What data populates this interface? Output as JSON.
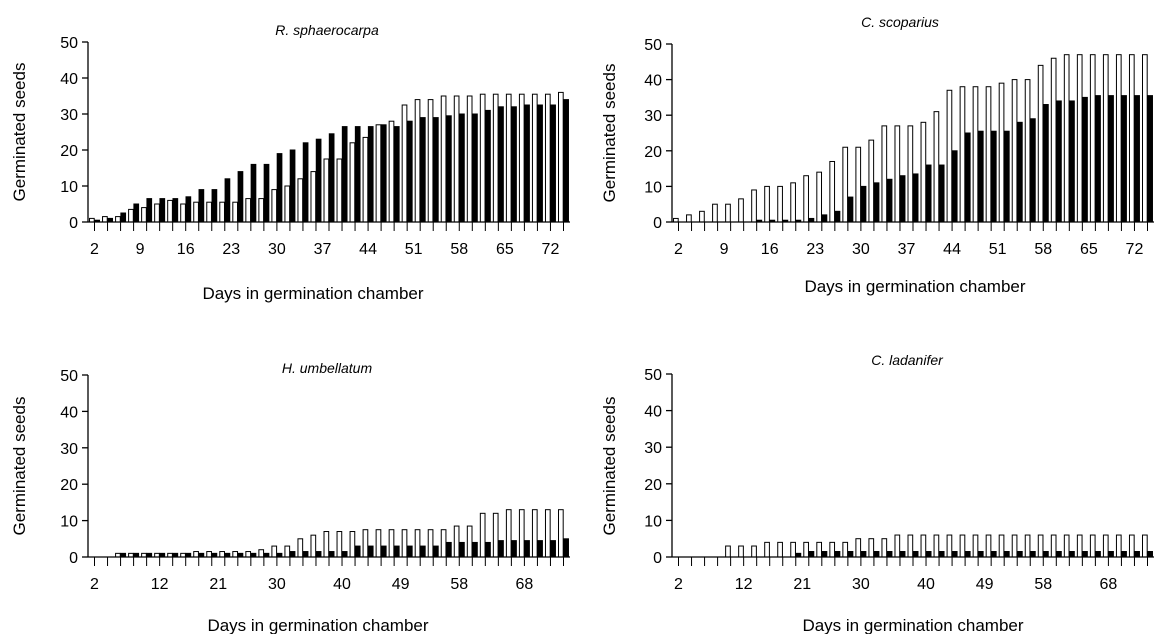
{
  "figure": {
    "legend": "none",
    "grid": false
  },
  "chart_data": [
    {
      "type": "bar",
      "title": "R. sphaerocarpa",
      "xlabel": "Days in germination chamber",
      "ylabel": "Germinated seeds",
      "ylim": [
        0,
        50
      ],
      "yticks": [
        0,
        10,
        20,
        30,
        40,
        50
      ],
      "xtick_labels": [
        "2",
        "9",
        "16",
        "23",
        "30",
        "37",
        "44",
        "51",
        "58",
        "65",
        "72"
      ],
      "xticks": [
        2,
        9,
        16,
        23,
        30,
        37,
        44,
        51,
        58,
        65,
        72
      ],
      "x": [
        2,
        4,
        6,
        8,
        10,
        12,
        14,
        16,
        18,
        20,
        22,
        24,
        26,
        28,
        30,
        32,
        34,
        36,
        38,
        40,
        42,
        44,
        46,
        48,
        50,
        52,
        54,
        56,
        58,
        60,
        62,
        64,
        66,
        68,
        70,
        72,
        74
      ],
      "series": [
        {
          "color": "#ffffff",
          "values": [
            1,
            1.5,
            1.5,
            3.5,
            4,
            5,
            6,
            5,
            5.5,
            5.5,
            5.5,
            5.5,
            6.5,
            6.5,
            9,
            10,
            12,
            14,
            17.5,
            17.5,
            22,
            23.5,
            27,
            28,
            32.5,
            34,
            34,
            35,
            35,
            35,
            35.5,
            35.5,
            35.5,
            35.5,
            35.5,
            35.5,
            36
          ]
        },
        {
          "color": "#000000",
          "values": [
            0.5,
            1,
            2.5,
            5,
            6.5,
            6.5,
            6.5,
            7,
            9,
            9,
            12,
            14,
            16,
            16,
            19,
            20,
            22,
            23,
            24.5,
            26.5,
            26.5,
            26.5,
            27,
            26.5,
            28,
            29,
            29,
            29.5,
            30,
            30,
            31,
            32,
            32,
            32.5,
            32.5,
            32.5,
            34
          ]
        }
      ]
    },
    {
      "type": "bar",
      "title": "C. scoparius",
      "xlabel": "Days in germination chamber",
      "ylabel": "Germinated seeds",
      "ylim": [
        0,
        50
      ],
      "yticks": [
        0,
        10,
        20,
        30,
        40,
        50
      ],
      "xtick_labels": [
        "2",
        "9",
        "16",
        "23",
        "30",
        "37",
        "44",
        "51",
        "58",
        "65",
        "72"
      ],
      "xticks": [
        2,
        9,
        16,
        23,
        30,
        37,
        44,
        51,
        58,
        65,
        72
      ],
      "x": [
        2,
        4,
        6,
        8,
        10,
        12,
        14,
        16,
        18,
        20,
        22,
        24,
        26,
        28,
        30,
        32,
        34,
        36,
        38,
        40,
        42,
        44,
        46,
        48,
        50,
        52,
        54,
        56,
        58,
        60,
        62,
        64,
        66,
        68,
        70,
        72,
        74
      ],
      "series": [
        {
          "color": "#ffffff",
          "values": [
            1,
            2,
            3,
            5,
            5,
            6.5,
            9,
            10,
            10,
            11,
            13,
            14,
            17,
            21,
            21,
            23,
            27,
            27,
            27,
            28,
            31,
            37,
            38,
            38,
            38,
            39,
            40,
            40,
            44,
            46,
            47,
            47,
            47,
            47,
            47,
            47,
            47
          ]
        },
        {
          "color": "#000000",
          "values": [
            0,
            0,
            0,
            0,
            0,
            0,
            0.5,
            0.5,
            0.5,
            0.5,
            1,
            2,
            3,
            7,
            10,
            11,
            12,
            13,
            13.5,
            16,
            16,
            20,
            25,
            25.5,
            25.5,
            25.5,
            28,
            29,
            33,
            34,
            34,
            35,
            35.5,
            35.5,
            35.5,
            35.5,
            35.5
          ]
        }
      ]
    },
    {
      "type": "bar",
      "title": "H. umbellatum",
      "xlabel": "Days in germination chamber",
      "ylabel": "Germinated seeds",
      "ylim": [
        0,
        50
      ],
      "yticks": [
        0,
        10,
        20,
        30,
        40,
        50
      ],
      "xtick_labels": [
        "2",
        "12",
        "21",
        "30",
        "40",
        "49",
        "58",
        "68"
      ],
      "xticks": [
        2,
        12,
        21,
        30,
        40,
        49,
        58,
        68
      ],
      "x": [
        2,
        4,
        6,
        8,
        10,
        12,
        14,
        16,
        18,
        20,
        22,
        24,
        26,
        28,
        30,
        32,
        34,
        36,
        38,
        40,
        42,
        44,
        46,
        48,
        50,
        52,
        54,
        56,
        58,
        60,
        62,
        64,
        66,
        68,
        70,
        72,
        74
      ],
      "series": [
        {
          "color": "#ffffff",
          "values": [
            0,
            0,
            1,
            1,
            1,
            1,
            1,
            1,
            1.5,
            1.5,
            1.5,
            1.5,
            1.5,
            2,
            3,
            3,
            5,
            6,
            7,
            7,
            7,
            7.5,
            7.5,
            7.5,
            7.5,
            7.5,
            7.5,
            7.5,
            8.5,
            8.5,
            12,
            12,
            13,
            13,
            13,
            13,
            13
          ]
        },
        {
          "color": "#000000",
          "values": [
            0,
            0,
            1,
            1,
            1,
            1,
            1,
            1,
            1,
            1,
            1,
            1,
            1,
            1,
            1,
            1.5,
            1.5,
            1.5,
            1.5,
            1.5,
            3,
            3,
            3,
            3,
            3,
            3,
            3,
            4,
            4,
            4,
            4,
            4.5,
            4.5,
            4.5,
            4.5,
            4.5,
            5
          ]
        }
      ]
    },
    {
      "type": "bar",
      "title": "C. ladanifer",
      "xlabel": "Days in germination chamber",
      "ylabel": "Germinated seeds",
      "ylim": [
        0,
        50
      ],
      "yticks": [
        0,
        10,
        20,
        30,
        40,
        50
      ],
      "xtick_labels": [
        "2",
        "12",
        "21",
        "30",
        "40",
        "49",
        "58",
        "68"
      ],
      "xticks": [
        2,
        12,
        21,
        30,
        40,
        49,
        58,
        68
      ],
      "x": [
        2,
        4,
        6,
        8,
        10,
        12,
        14,
        16,
        18,
        20,
        22,
        24,
        26,
        28,
        30,
        32,
        34,
        36,
        38,
        40,
        42,
        44,
        46,
        48,
        50,
        52,
        54,
        56,
        58,
        60,
        62,
        64,
        66,
        68,
        70,
        72,
        74
      ],
      "series": [
        {
          "color": "#ffffff",
          "values": [
            0,
            0,
            0,
            0,
            3,
            3,
            3,
            4,
            4,
            4,
            4,
            4,
            4,
            4,
            5,
            5,
            5,
            6,
            6,
            6,
            6,
            6,
            6,
            6,
            6,
            6,
            6,
            6,
            6,
            6,
            6,
            6,
            6,
            6,
            6,
            6,
            6
          ]
        },
        {
          "color": "#000000",
          "values": [
            0,
            0,
            0,
            0,
            0,
            0,
            0,
            0,
            0,
            1,
            1.5,
            1.5,
            1.5,
            1.5,
            1.5,
            1.5,
            1.5,
            1.5,
            1.5,
            1.5,
            1.5,
            1.5,
            1.5,
            1.5,
            1.5,
            1.5,
            1.5,
            1.5,
            1.5,
            1.5,
            1.5,
            1.5,
            1.5,
            1.5,
            1.5,
            1.5,
            1.5
          ]
        }
      ]
    }
  ]
}
